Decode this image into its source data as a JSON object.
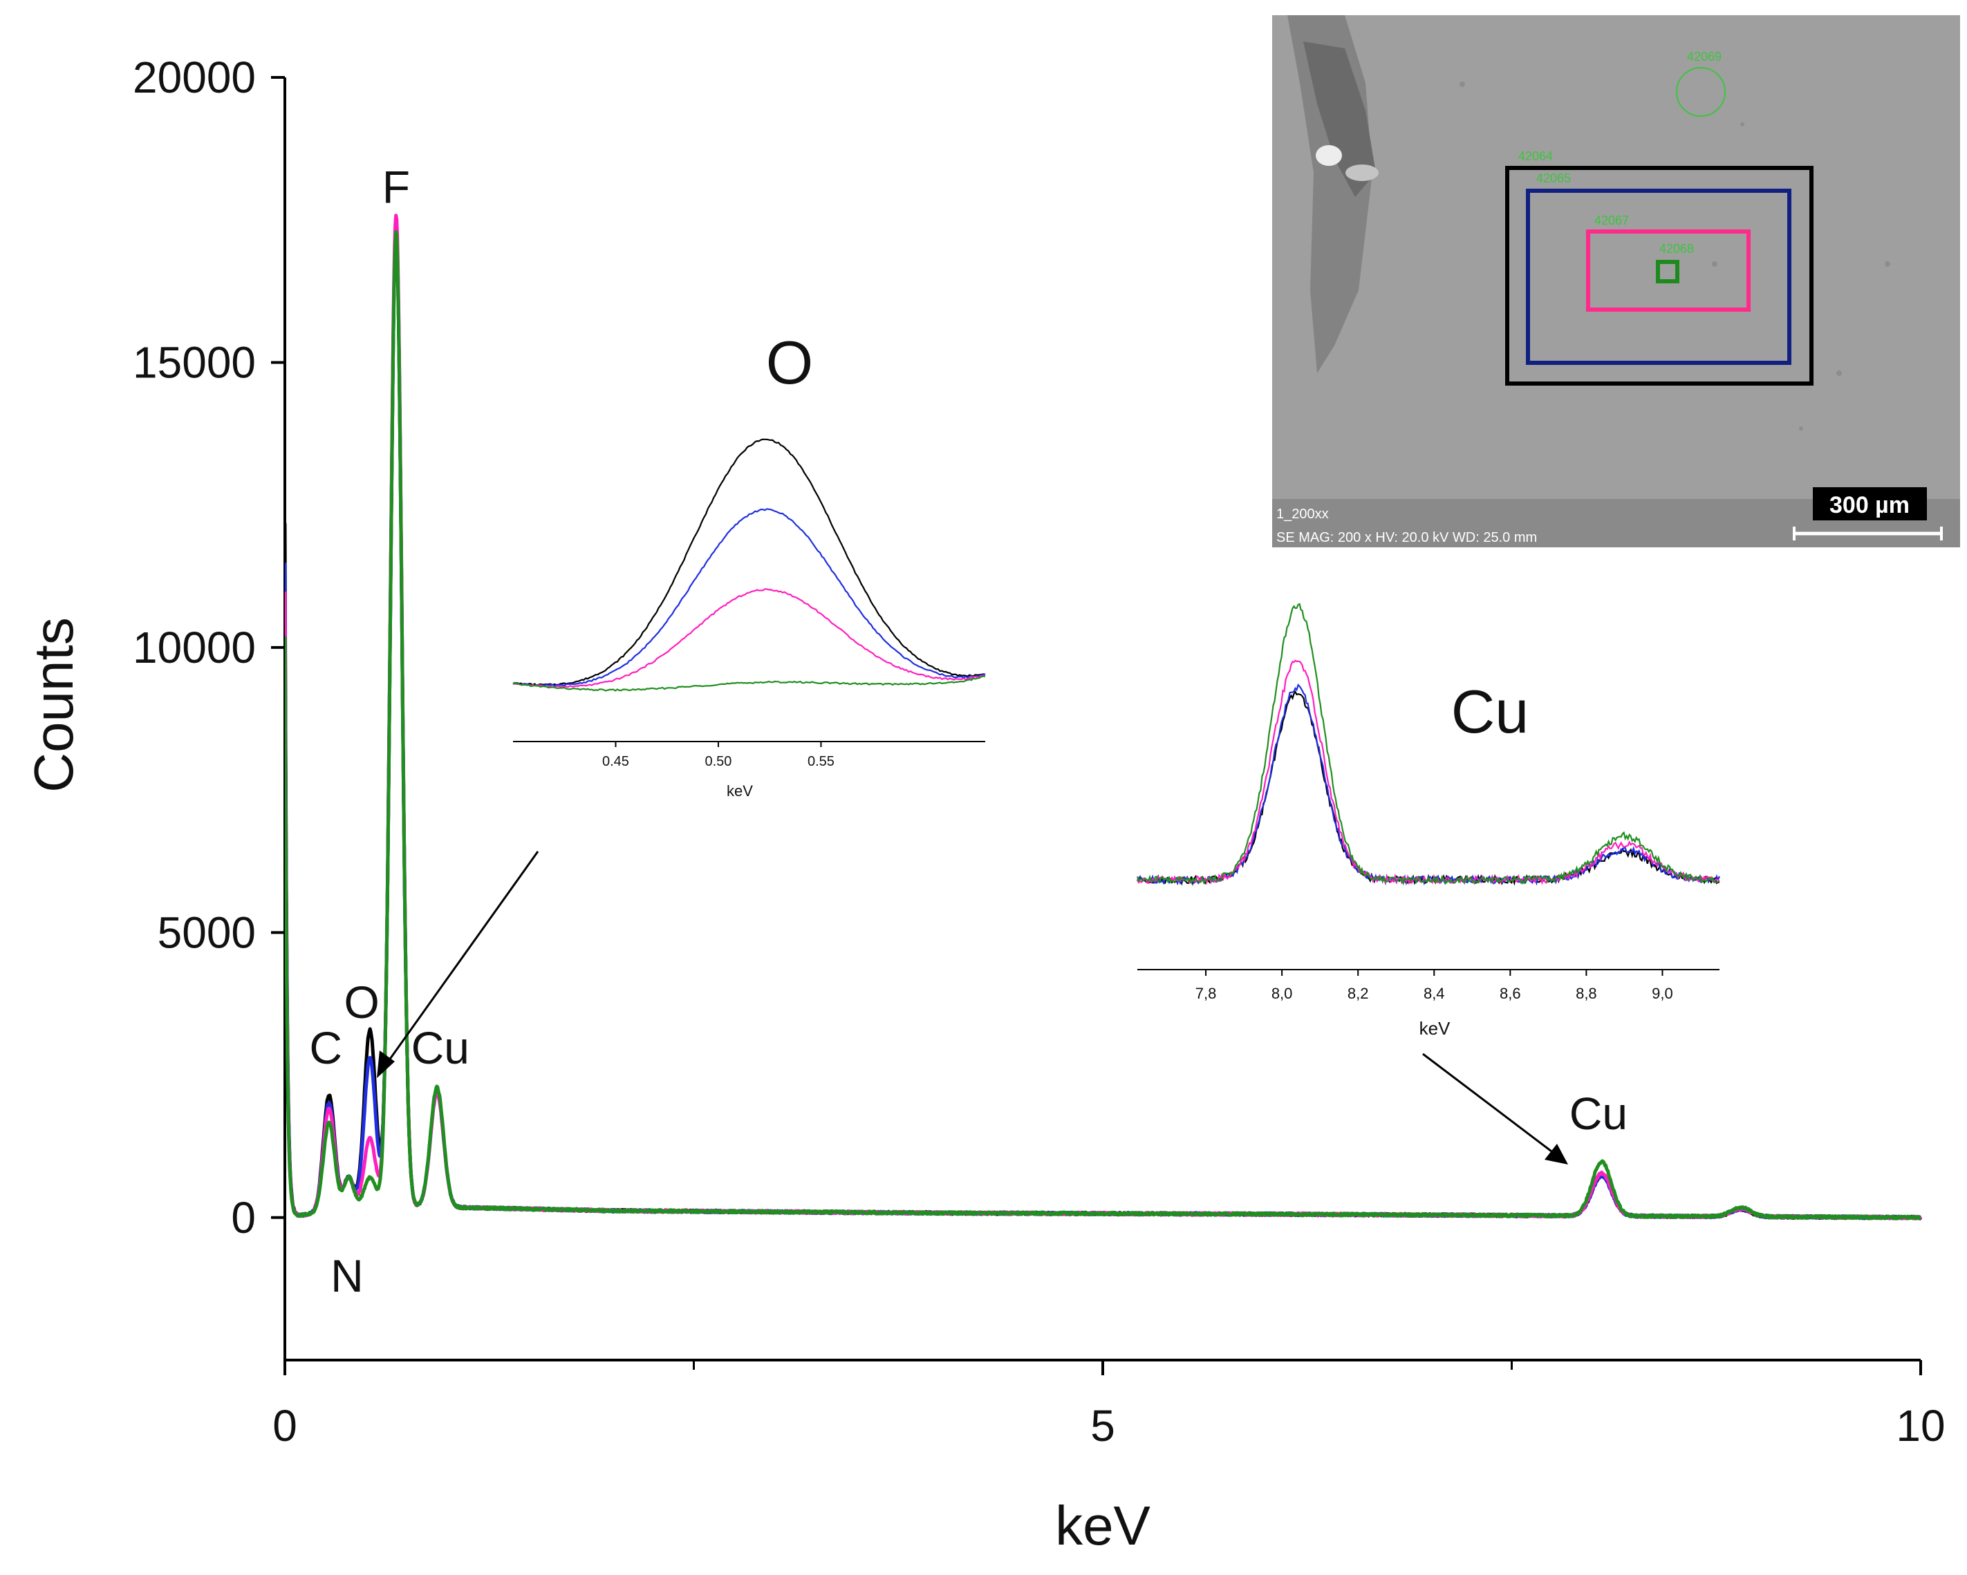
{
  "chart_data": {
    "main": {
      "type": "line",
      "xlabel": "keV",
      "ylabel": "Counts",
      "xlim": [
        0,
        10
      ],
      "ylim": [
        -2500,
        20000
      ],
      "x_major_ticks": [
        0,
        5,
        10
      ],
      "x_minor_ticks": [
        2.5,
        7.5
      ],
      "y_ticks": [
        0,
        5000,
        10000,
        15000,
        20000
      ],
      "x_tick_labels": [
        "0",
        "5",
        "10"
      ],
      "y_tick_labels": [
        "0",
        "5000",
        "10000",
        "15000",
        "20000"
      ],
      "series": [
        {
          "name": "spectrum-black",
          "color": "#000000"
        },
        {
          "name": "spectrum-blue",
          "color": "#1f2fe0"
        },
        {
          "name": "spectrum-magenta",
          "color": "#ff1fbf"
        },
        {
          "name": "spectrum-green",
          "color": "#1f8f1f"
        }
      ],
      "peak_model": {
        "background": [
          [
            0,
            0
          ],
          [
            0.5,
            200
          ],
          [
            1.0,
            180
          ],
          [
            2.0,
            120
          ],
          [
            4.0,
            80
          ],
          [
            6.0,
            60
          ],
          [
            8.0,
            30
          ],
          [
            10.0,
            0
          ]
        ],
        "peaks": [
          {
            "label": "C",
            "x": 0.27,
            "width": 0.035,
            "heights": [
              2050,
              1900,
              1800,
              1550
            ]
          },
          {
            "label": "N",
            "x": 0.39,
            "width": 0.03,
            "heights": [
              550,
              550,
              550,
              550
            ]
          },
          {
            "label": "O",
            "x": 0.52,
            "width": 0.035,
            "heights": [
              3100,
              2600,
              1200,
              500
            ]
          },
          {
            "label": "F",
            "x": 0.68,
            "width": 0.035,
            "heights": [
              17100,
              17200,
              17400,
              17100
            ]
          },
          {
            "label": "Cu",
            "x": 0.93,
            "width": 0.04,
            "heights": [
              2050,
              2000,
              2000,
              2100
            ]
          },
          {
            "label": "Cu",
            "x": 8.05,
            "width": 0.06,
            "heights": [
              700,
              700,
              750,
              950
            ]
          },
          {
            "label": "",
            "x": 8.9,
            "width": 0.06,
            "heights": [
              130,
              130,
              140,
              160
            ]
          }
        ],
        "low_energy_spike": [
          12200,
          11500,
          11000,
          10200
        ]
      },
      "peak_labels": [
        {
          "text": "F",
          "x": 0.68,
          "y": 17800
        },
        {
          "text": "O",
          "x": 0.47,
          "y": 3500
        },
        {
          "text": "C",
          "x": 0.25,
          "y": 2700
        },
        {
          "text": "Cu",
          "x": 0.95,
          "y": 2700
        },
        {
          "text": "N",
          "x": 0.38,
          "y": -1300
        },
        {
          "text": "Cu",
          "x": 8.03,
          "y": 1550
        }
      ]
    },
    "inset_oxygen": {
      "type": "line",
      "title": "O",
      "xlabel": "keV",
      "xlim": [
        0.4,
        0.63
      ],
      "x_ticks": [
        0.45,
        0.5,
        0.55
      ],
      "x_tick_labels": [
        "0.45",
        "0.50",
        "0.55"
      ],
      "series": [
        {
          "name": "O-black",
          "color": "#000000",
          "peak": 1.0
        },
        {
          "name": "O-blue",
          "color": "#1f2fe0",
          "peak": 0.72
        },
        {
          "name": "O-magenta",
          "color": "#ff1fbf",
          "peak": 0.4
        },
        {
          "name": "O-green",
          "color": "#1f8f1f",
          "peak": 0.03
        }
      ],
      "peak_center": 0.523
    },
    "inset_copper": {
      "type": "line",
      "title": "Cu",
      "xlabel": "keV",
      "xlim": [
        7.62,
        9.15
      ],
      "x_ticks": [
        7.8,
        8.0,
        8.2,
        8.4,
        8.6,
        8.8,
        9.0
      ],
      "x_tick_labels": [
        "7,8",
        "8,0",
        "8,2",
        "8,4",
        "8,6",
        "8,8",
        "9,0"
      ],
      "series": [
        {
          "name": "Cu-black",
          "color": "#000000",
          "ka": 0.68,
          "kb": 0.1
        },
        {
          "name": "Cu-blue",
          "color": "#1f2fe0",
          "ka": 0.7,
          "kb": 0.11
        },
        {
          "name": "Cu-magenta",
          "color": "#ff1fbf",
          "ka": 0.8,
          "kb": 0.13
        },
        {
          "name": "Cu-green",
          "color": "#1f8f1f",
          "ka": 1.0,
          "kb": 0.16
        }
      ],
      "ka_center": 8.04,
      "kb_center": 8.9
    },
    "sem_image": {
      "scale_bar_label": "300 µm",
      "footer_line1": "1_200xx",
      "footer_line2": "SE  MAG: 200 x  HV: 20.0 kV  WD: 25.0 mm",
      "region_labels": [
        "42069",
        "42064",
        "42065",
        "42067",
        "42068"
      ]
    }
  }
}
